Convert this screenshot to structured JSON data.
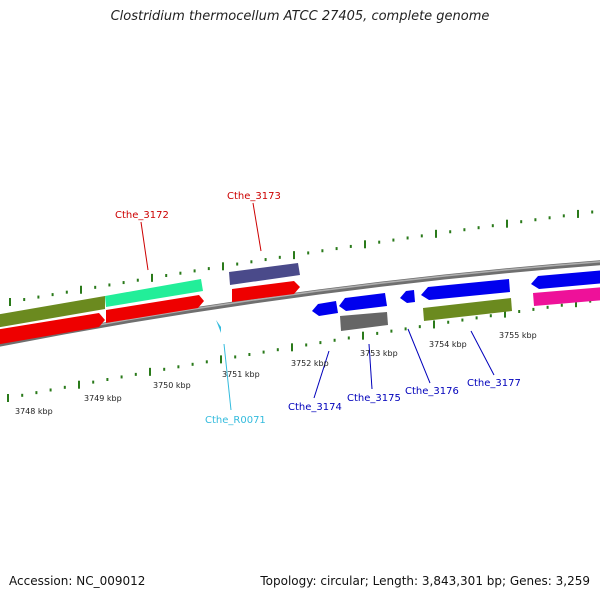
{
  "title": "Clostridium thermocellum ATCC 27405, complete genome",
  "accession": "Accession: NC_009012",
  "summary": "Topology: circular; Length: 3,843,301 bp; Genes: 3,259",
  "kbp_labels": [
    "3748 kbp",
    "3749 kbp",
    "3750 kbp",
    "3751 kbp",
    "3752 kbp",
    "3753 kbp",
    "3754 kbp",
    "3755 kbp"
  ],
  "genes": [
    {
      "label": "Cthe_3172",
      "color": "#cc0000"
    },
    {
      "label": "Cthe_3173",
      "color": "#cc0000"
    },
    {
      "label": "Cthe_R0071",
      "color": "#33bbdd"
    },
    {
      "label": "Cthe_3174",
      "color": "#0000bb"
    },
    {
      "label": "Cthe_3175",
      "color": "#0000bb"
    },
    {
      "label": "Cthe_3176",
      "color": "#0000bb"
    },
    {
      "label": "Cthe_3177",
      "color": "#0000bb"
    }
  ],
  "colors": {
    "backbone": "#888888",
    "ticks": "#2a7a1a",
    "forward_cds": "#ee0000",
    "reverse_cds": "#0000ee",
    "olive": "#6b8a1f",
    "mint": "#22ee99",
    "slate": "#4a4a8a",
    "grey": "#666666",
    "pink": "#ee1199",
    "rna": "#33bbdd"
  }
}
